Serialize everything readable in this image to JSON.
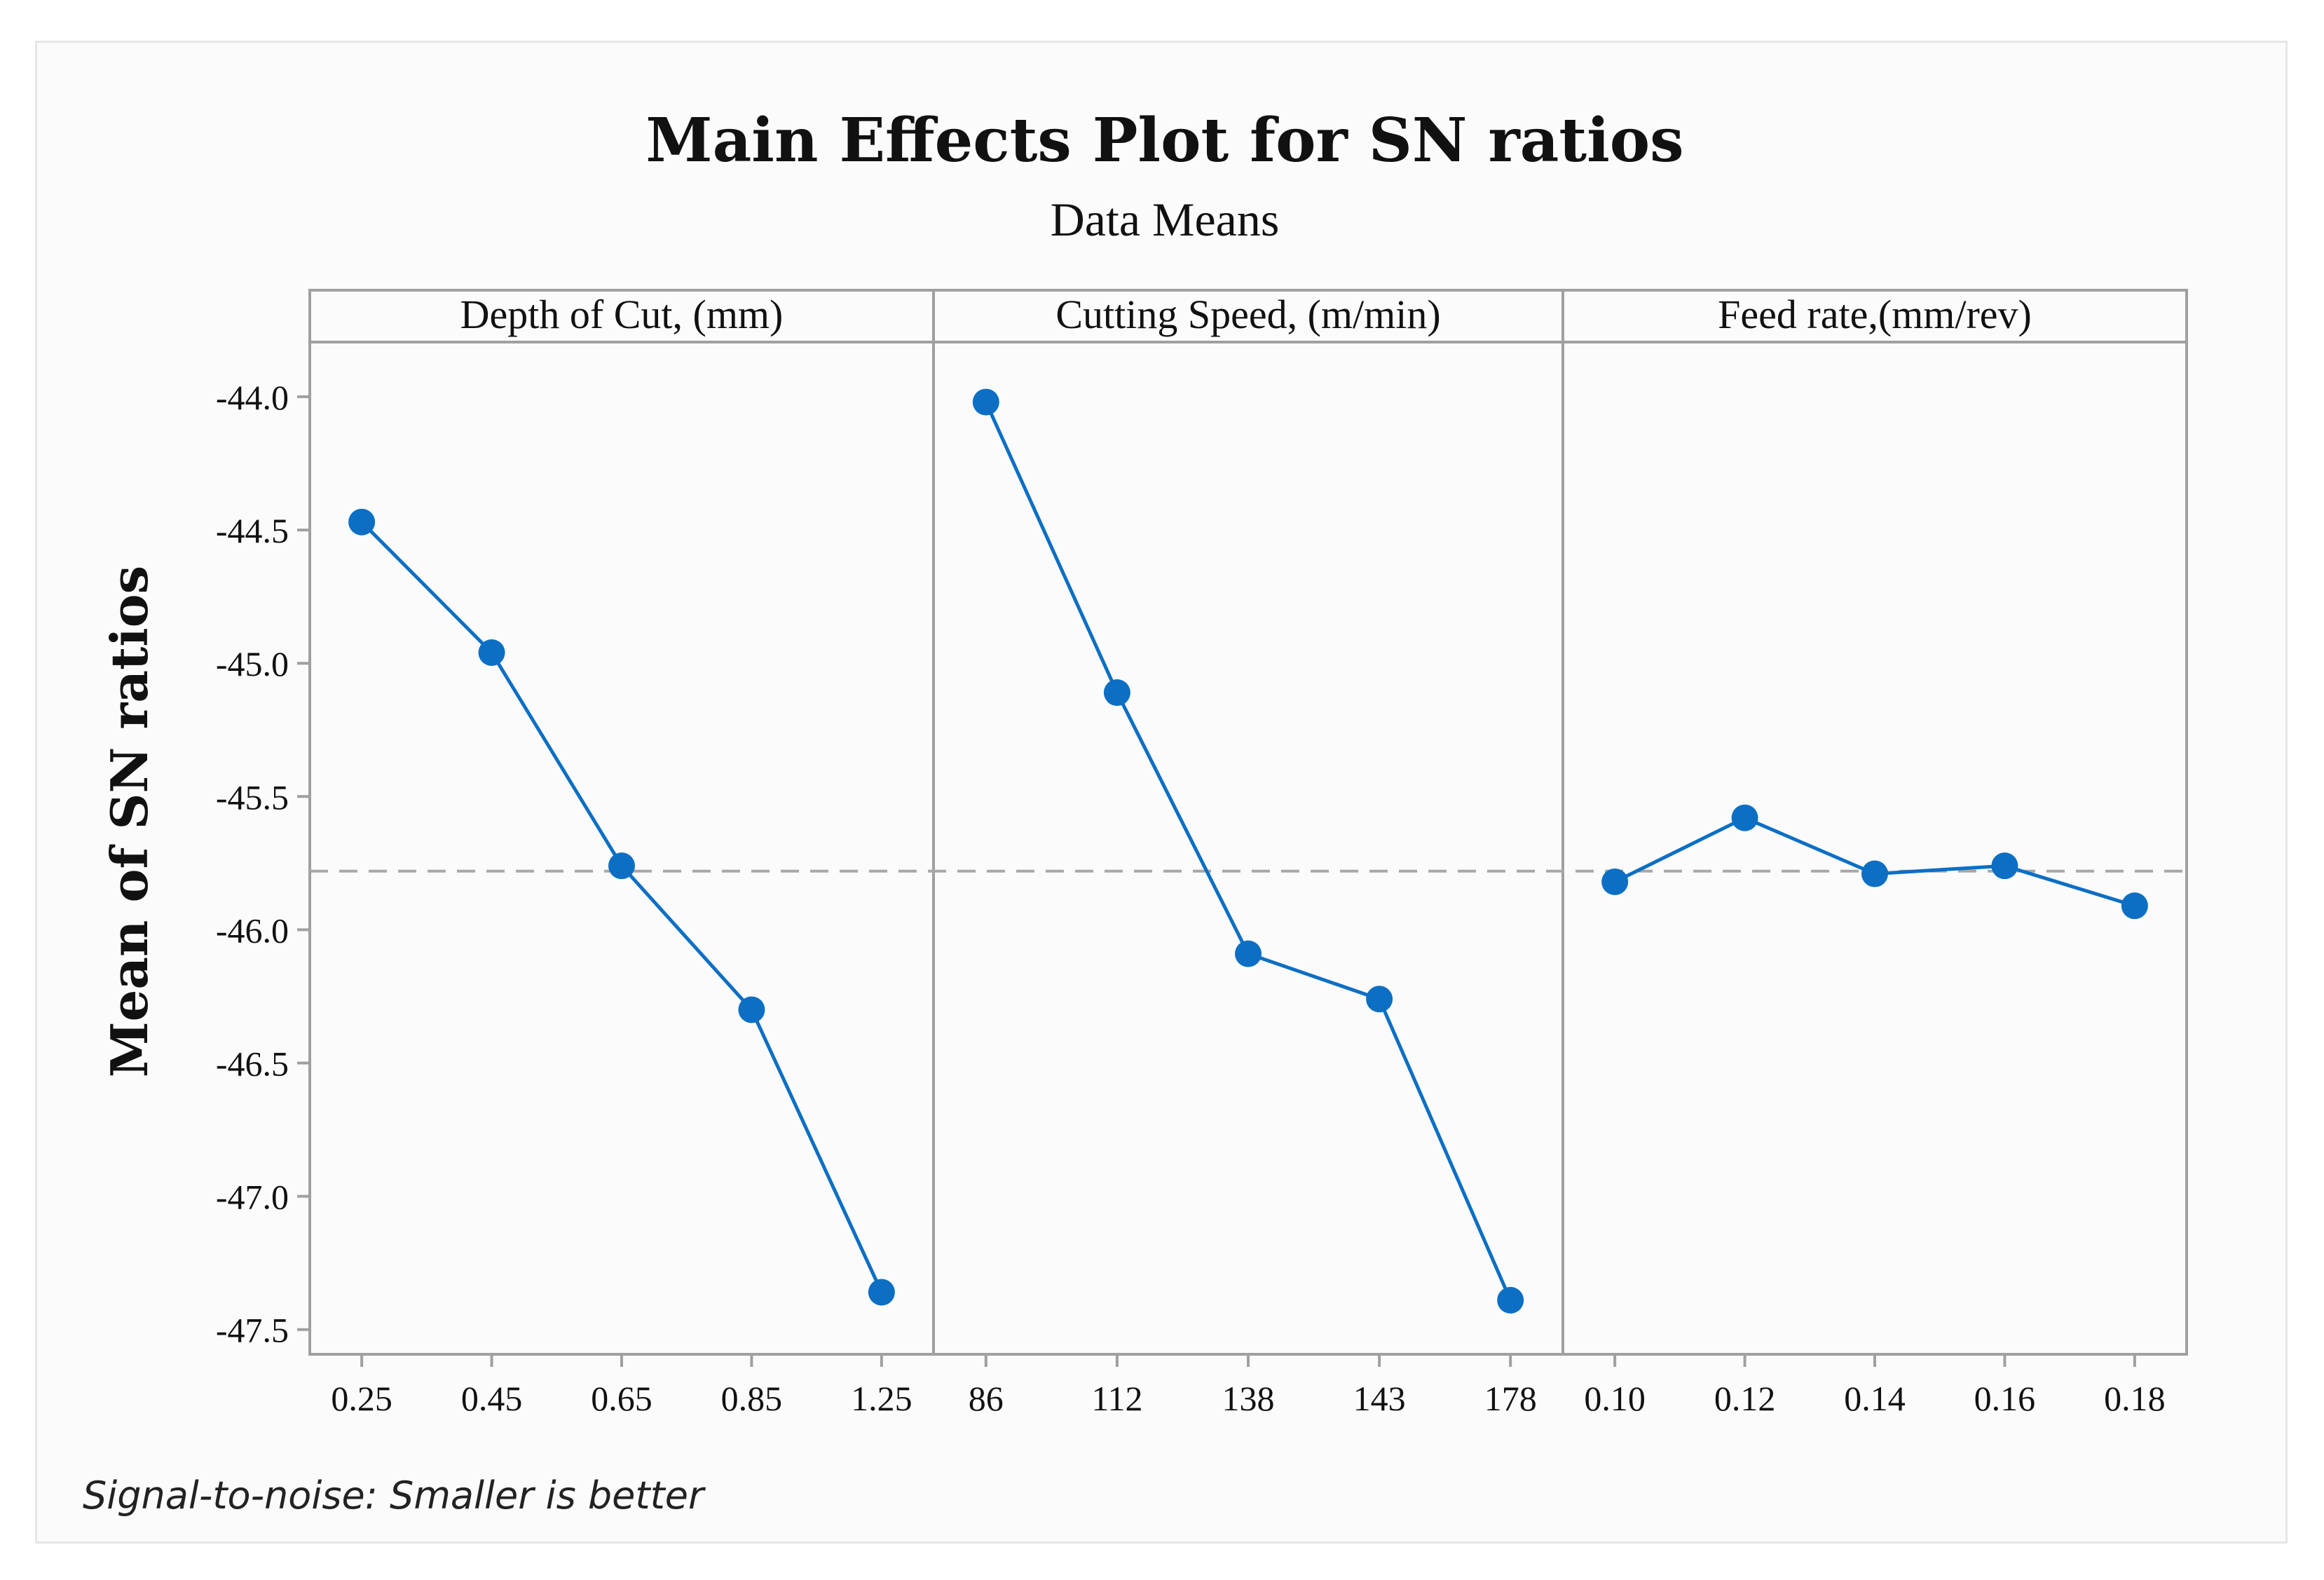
{
  "chart_data": {
    "type": "line",
    "title": "Main Effects Plot for SN ratios",
    "subtitle": "Data Means",
    "ylabel": "Mean of SN ratios",
    "ylim": [
      -47.7,
      -43.8
    ],
    "yticks": [
      "-44.0",
      "-44.5",
      "-45.0",
      "-45.5",
      "-46.0",
      "-46.5",
      "-47.0",
      "-47.5"
    ],
    "reference_line": -45.78,
    "grid": false,
    "footnote": "Signal-to-noise: Smaller is better",
    "colors": {
      "line": "#0c6fc4",
      "reference": "#a8a8a8",
      "axes": "#a0a0a0"
    },
    "panels": [
      {
        "label": "Depth of Cut, (mm)",
        "categories": [
          "0.25",
          "0.45",
          "0.65",
          "0.85",
          "1.25"
        ],
        "values": [
          -44.47,
          -44.96,
          -45.76,
          -46.3,
          -47.36
        ]
      },
      {
        "label": "Cutting Speed, (m/min)",
        "categories": [
          "86",
          "112",
          "138",
          "143",
          "178"
        ],
        "values": [
          -44.02,
          -45.11,
          -46.09,
          -46.26,
          -47.39
        ]
      },
      {
        "label": "Feed rate,(mm/rev)",
        "categories": [
          "0.10",
          "0.12",
          "0.14",
          "0.16",
          "0.18"
        ],
        "values": [
          -45.82,
          -45.58,
          -45.79,
          -45.76,
          -45.91
        ]
      }
    ]
  }
}
